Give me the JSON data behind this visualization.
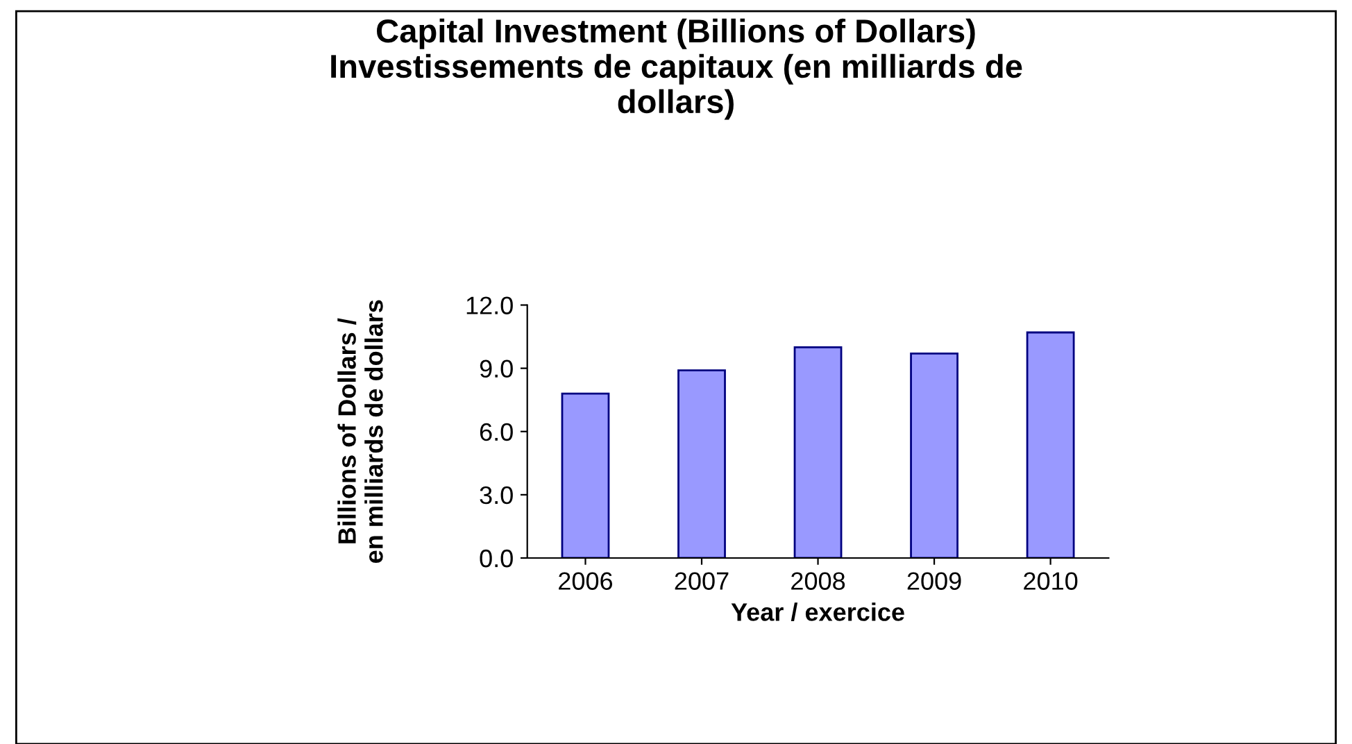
{
  "chart_data": {
    "type": "bar",
    "title": "Capital Investment (Billions of Dollars)\nInvestissements de capitaux (en milliards de\ndollars)",
    "xlabel": "Year / exercice",
    "ylabel": "Billions of Dollars /\nen milliards de dollars",
    "categories": [
      "2006",
      "2007",
      "2008",
      "2009",
      "2010"
    ],
    "values": [
      7.8,
      8.9,
      10.0,
      9.7,
      10.7
    ],
    "color": "#9999ff",
    "ylim": [
      0,
      12
    ],
    "yticks": [
      {
        "value": 0,
        "label": "0.0"
      },
      {
        "value": 3,
        "label": "3.0"
      },
      {
        "value": 6,
        "label": "6.0"
      },
      {
        "value": 9,
        "label": "9.0"
      },
      {
        "value": 12,
        "label": "12.0"
      }
    ],
    "grid": false
  }
}
